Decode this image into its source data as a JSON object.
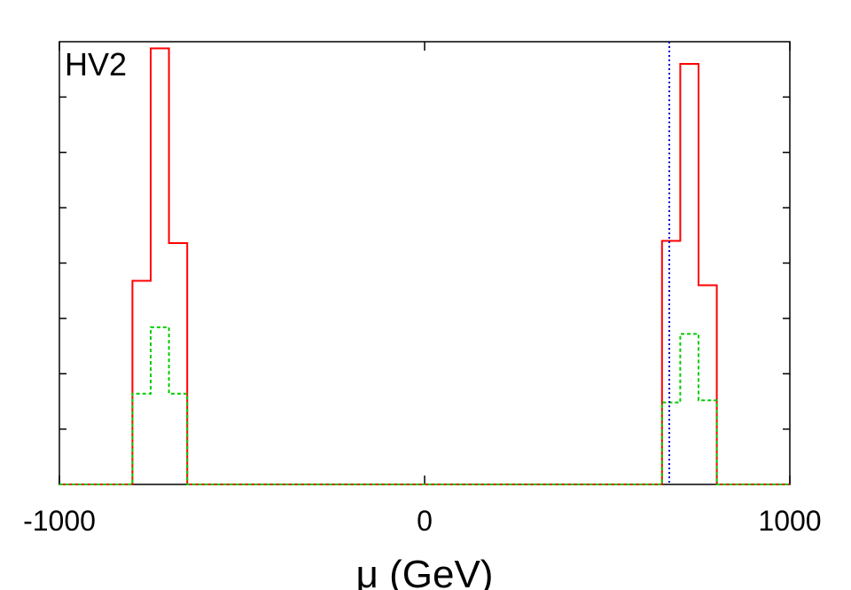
{
  "chart_data": {
    "type": "histogram",
    "panel_label": "HV2",
    "xlabel": "μ (GeV)",
    "ylabel": "",
    "xlim": [
      -1000,
      1000
    ],
    "ylim": [
      0,
      1
    ],
    "x_ticks": [
      -1000,
      0,
      1000
    ],
    "x_tick_labels": [
      "-1000",
      "0",
      "1000"
    ],
    "y_tick_count": 8,
    "grid": false,
    "legend": "none",
    "reference_line": {
      "x": 670,
      "style": "dotted",
      "color": "#0000cc"
    },
    "bin_edges": [
      -800,
      -750,
      -700,
      -650,
      650,
      700,
      750,
      800
    ],
    "series": [
      {
        "color": "#ff0000",
        "style": "solid",
        "values": [
          0.46,
          0.985,
          0.545,
          0,
          0.55,
          0.95,
          0.45
        ]
      },
      {
        "color": "#00cc00",
        "style": "dashed",
        "values": [
          0.205,
          0.355,
          0.205,
          0,
          0.185,
          0.34,
          0.19
        ]
      }
    ]
  }
}
